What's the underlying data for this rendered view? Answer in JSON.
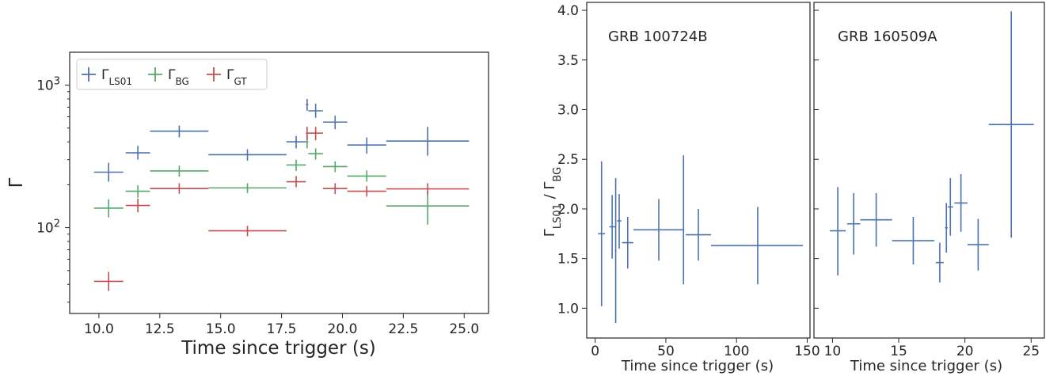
{
  "colors": {
    "LS01": "#4c72b0",
    "BG": "#55a868",
    "GT": "#c44e52"
  },
  "chart_data": [
    {
      "type": "scatter",
      "xlabel": "Time since trigger (s)",
      "ylabel": "Γ",
      "yscale": "log",
      "xlim": [
        8.8,
        26.0
      ],
      "ylim": [
        25,
        1700
      ],
      "xticks": [
        "10.0",
        "12.5",
        "15.0",
        "17.5",
        "20.0",
        "22.5",
        "25.0"
      ],
      "yticks": [
        {
          "value": 100,
          "base": "10",
          "exp": "2"
        },
        {
          "value": 1000,
          "base": "10",
          "exp": "3"
        }
      ],
      "legend_position": "top-left",
      "grid": false,
      "series": [
        {
          "name_base": "Γ",
          "name_sub": "LS01",
          "color_key": "LS01",
          "points": [
            {
              "x": 10.4,
              "xlo": 9.8,
              "xhi": 11.0,
              "y": 245,
              "ylo": 210,
              "yhi": 285
            },
            {
              "x": 11.6,
              "xlo": 11.1,
              "xhi": 12.1,
              "y": 335,
              "ylo": 300,
              "yhi": 375
            },
            {
              "x": 13.3,
              "xlo": 12.1,
              "xhi": 14.5,
              "y": 475,
              "ylo": 430,
              "yhi": 520
            },
            {
              "x": 16.1,
              "xlo": 14.5,
              "xhi": 17.7,
              "y": 325,
              "ylo": 295,
              "yhi": 355
            },
            {
              "x": 18.1,
              "xlo": 17.7,
              "xhi": 18.5,
              "y": 400,
              "ylo": 360,
              "yhi": 440
            },
            {
              "x": 18.55,
              "xlo": 18.5,
              "xhi": 18.6,
              "y": 730,
              "ylo": 660,
              "yhi": 800
            },
            {
              "x": 18.9,
              "xlo": 18.6,
              "xhi": 19.2,
              "y": 660,
              "ylo": 590,
              "yhi": 740
            },
            {
              "x": 19.7,
              "xlo": 19.2,
              "xhi": 20.2,
              "y": 550,
              "ylo": 490,
              "yhi": 610
            },
            {
              "x": 21.0,
              "xlo": 20.2,
              "xhi": 21.8,
              "y": 380,
              "ylo": 330,
              "yhi": 430
            },
            {
              "x": 23.5,
              "xlo": 21.8,
              "xhi": 25.2,
              "y": 405,
              "ylo": 320,
              "yhi": 510
            }
          ]
        },
        {
          "name_base": "Γ",
          "name_sub": "BG",
          "color_key": "BG",
          "points": [
            {
              "x": 10.4,
              "xlo": 9.8,
              "xhi": 11.0,
              "y": 137,
              "ylo": 118,
              "yhi": 158
            },
            {
              "x": 11.6,
              "xlo": 11.1,
              "xhi": 12.1,
              "y": 180,
              "ylo": 162,
              "yhi": 198
            },
            {
              "x": 13.3,
              "xlo": 12.1,
              "xhi": 14.5,
              "y": 250,
              "ylo": 228,
              "yhi": 272
            },
            {
              "x": 16.1,
              "xlo": 14.5,
              "xhi": 17.7,
              "y": 190,
              "ylo": 175,
              "yhi": 205
            },
            {
              "x": 18.1,
              "xlo": 17.7,
              "xhi": 18.5,
              "y": 275,
              "ylo": 250,
              "yhi": 300
            },
            {
              "x": 18.55,
              "xlo": 18.5,
              "xhi": 18.6,
              "y": 400,
              "ylo": 360,
              "yhi": 440
            },
            {
              "x": 18.9,
              "xlo": 18.6,
              "xhi": 19.2,
              "y": 330,
              "ylo": 300,
              "yhi": 360
            },
            {
              "x": 19.7,
              "xlo": 19.2,
              "xhi": 20.2,
              "y": 268,
              "ylo": 245,
              "yhi": 292
            },
            {
              "x": 21.0,
              "xlo": 20.2,
              "xhi": 21.8,
              "y": 230,
              "ylo": 210,
              "yhi": 252
            },
            {
              "x": 23.5,
              "xlo": 21.8,
              "xhi": 25.2,
              "y": 142,
              "ylo": 105,
              "yhi": 180
            }
          ]
        },
        {
          "name_base": "Γ",
          "name_sub": "GT",
          "color_key": "GT",
          "points": [
            {
              "x": 10.4,
              "xlo": 9.8,
              "xhi": 11.0,
              "y": 42,
              "ylo": 36,
              "yhi": 49
            },
            {
              "x": 11.6,
              "xlo": 11.1,
              "xhi": 12.1,
              "y": 143,
              "ylo": 128,
              "yhi": 160
            },
            {
              "x": 13.3,
              "xlo": 12.1,
              "xhi": 14.5,
              "y": 188,
              "ylo": 173,
              "yhi": 205
            },
            {
              "x": 16.1,
              "xlo": 14.5,
              "xhi": 17.7,
              "y": 95,
              "ylo": 87,
              "yhi": 103
            },
            {
              "x": 18.1,
              "xlo": 17.7,
              "xhi": 18.5,
              "y": 210,
              "ylo": 192,
              "yhi": 230
            },
            {
              "x": 18.55,
              "xlo": 18.5,
              "xhi": 18.6,
              "y": 460,
              "ylo": 410,
              "yhi": 510
            },
            {
              "x": 18.9,
              "xlo": 18.6,
              "xhi": 19.2,
              "y": 460,
              "ylo": 410,
              "yhi": 510
            },
            {
              "x": 19.7,
              "xlo": 19.2,
              "xhi": 20.2,
              "y": 188,
              "ylo": 172,
              "yhi": 205
            },
            {
              "x": 21.0,
              "xlo": 20.2,
              "xhi": 21.8,
              "y": 180,
              "ylo": 165,
              "yhi": 196
            },
            {
              "x": 23.5,
              "xlo": 21.8,
              "xhi": 25.2,
              "y": 187,
              "ylo": 170,
              "yhi": 205
            }
          ]
        }
      ]
    },
    {
      "type": "scatter",
      "title": "GRB 100724B",
      "xlabel": "Time since trigger (s)",
      "ylabel_base": "Γ",
      "ylabel_sub_num": "LS01",
      "ylabel_sep": " / ",
      "ylabel_sub_den": "BG",
      "xlim": [
        -6,
        152
      ],
      "ylim": [
        0.7,
        4.08
      ],
      "xticks": [
        "0",
        "50",
        "100",
        "150"
      ],
      "yticks": [
        "1.0",
        "1.5",
        "2.0",
        "2.5",
        "3.0",
        "3.5",
        "4.0"
      ],
      "color_key": "LS01",
      "points": [
        {
          "x": 4.5,
          "xlo": 2,
          "xhi": 7,
          "y": 1.75,
          "ylo": 1.02,
          "yhi": 2.48
        },
        {
          "x": 12,
          "xlo": 10,
          "xhi": 14,
          "y": 1.82,
          "ylo": 1.5,
          "yhi": 2.14
        },
        {
          "x": 14.5,
          "xlo": 14,
          "xhi": 15,
          "y": 1.58,
          "ylo": 0.85,
          "yhi": 2.31
        },
        {
          "x": 17,
          "xlo": 15.5,
          "xhi": 18.5,
          "y": 1.88,
          "ylo": 1.6,
          "yhi": 2.15
        },
        {
          "x": 23,
          "xlo": 19,
          "xhi": 27,
          "y": 1.66,
          "ylo": 1.4,
          "yhi": 1.92
        },
        {
          "x": 45,
          "xlo": 27,
          "xhi": 63,
          "y": 1.79,
          "ylo": 1.48,
          "yhi": 2.1
        },
        {
          "x": 62.5,
          "xlo": 62,
          "xhi": 63,
          "y": 1.89,
          "ylo": 1.24,
          "yhi": 2.54
        },
        {
          "x": 73,
          "xlo": 64,
          "xhi": 82,
          "y": 1.74,
          "ylo": 1.48,
          "yhi": 2.0
        },
        {
          "x": 115,
          "xlo": 82,
          "xhi": 147,
          "y": 1.63,
          "ylo": 1.24,
          "yhi": 2.02
        }
      ]
    },
    {
      "type": "scatter",
      "title": "GRB 160509A",
      "xlabel": "Time since trigger (s)",
      "xlim": [
        8.6,
        26.0
      ],
      "ylim": [
        0.7,
        4.08
      ],
      "xticks": [
        "10",
        "15",
        "20",
        "25"
      ],
      "yticks": [
        1.0,
        1.5,
        2.0,
        2.5,
        3.0,
        3.5,
        4.0
      ],
      "color_key": "LS01",
      "points": [
        {
          "x": 10.4,
          "xlo": 9.8,
          "xhi": 11.0,
          "y": 1.78,
          "ylo": 1.33,
          "yhi": 2.22
        },
        {
          "x": 11.6,
          "xlo": 11.1,
          "xhi": 12.1,
          "y": 1.85,
          "ylo": 1.54,
          "yhi": 2.16
        },
        {
          "x": 13.3,
          "xlo": 12.1,
          "xhi": 14.5,
          "y": 1.89,
          "ylo": 1.62,
          "yhi": 2.16
        },
        {
          "x": 16.1,
          "xlo": 14.5,
          "xhi": 17.7,
          "y": 1.68,
          "ylo": 1.44,
          "yhi": 1.92
        },
        {
          "x": 18.1,
          "xlo": 17.8,
          "xhi": 18.4,
          "y": 1.46,
          "ylo": 1.26,
          "yhi": 1.66
        },
        {
          "x": 18.6,
          "xlo": 18.5,
          "xhi": 18.7,
          "y": 1.81,
          "ylo": 1.56,
          "yhi": 2.06
        },
        {
          "x": 18.9,
          "xlo": 18.7,
          "xhi": 19.1,
          "y": 2.02,
          "ylo": 1.73,
          "yhi": 2.31
        },
        {
          "x": 19.7,
          "xlo": 19.2,
          "xhi": 20.2,
          "y": 2.06,
          "ylo": 1.77,
          "yhi": 2.35
        },
        {
          "x": 21.0,
          "xlo": 20.2,
          "xhi": 21.8,
          "y": 1.64,
          "ylo": 1.38,
          "yhi": 1.9
        },
        {
          "x": 23.5,
          "xlo": 21.8,
          "xhi": 25.2,
          "y": 2.85,
          "ylo": 1.71,
          "yhi": 3.99
        }
      ]
    }
  ]
}
